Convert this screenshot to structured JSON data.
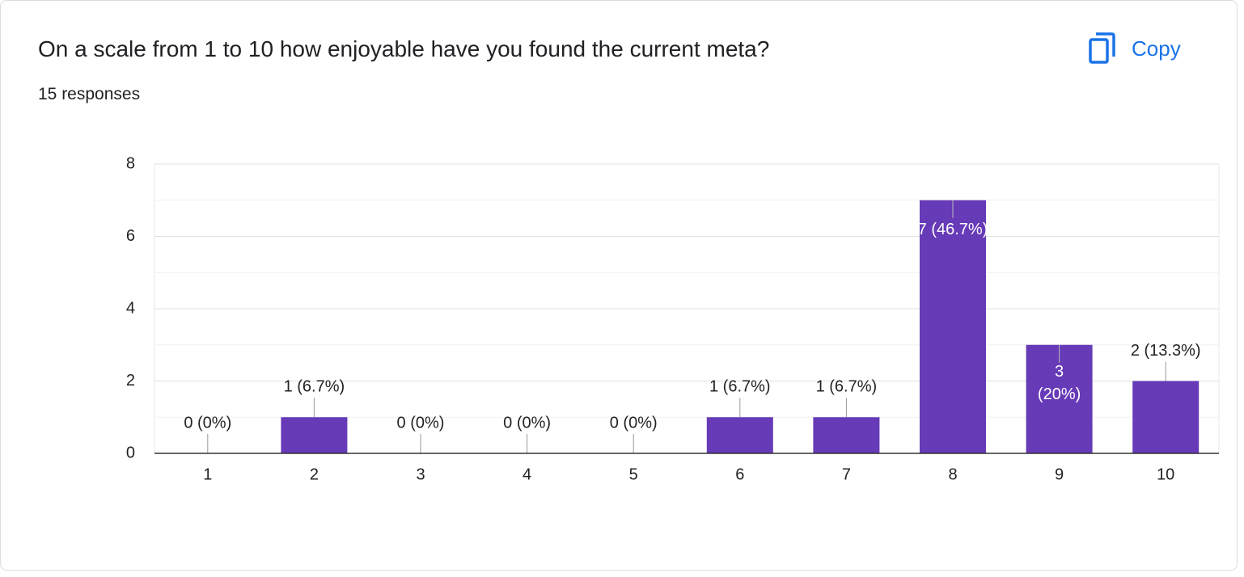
{
  "chart_data": {
    "type": "bar",
    "title": "On a scale from 1 to 10 how enjoyable have you found the current meta?",
    "subtitle": "15 responses",
    "copy_button": "Copy",
    "categories": [
      "1",
      "2",
      "3",
      "4",
      "5",
      "6",
      "7",
      "8",
      "9",
      "10"
    ],
    "values": [
      0,
      1,
      0,
      0,
      0,
      1,
      1,
      7,
      3,
      2
    ],
    "value_labels": [
      "0 (0%)",
      "1 (6.7%)",
      "0 (0%)",
      "0 (0%)",
      "0 (0%)",
      "1 (6.7%)",
      "1 (6.7%)",
      "7 (46.7%)",
      "3 (20%)",
      "2 (13.3%)"
    ],
    "color": "#673ab7",
    "ylim": [
      0,
      8
    ],
    "yticks": [
      0,
      2,
      4,
      6,
      8
    ],
    "grid": true
  }
}
